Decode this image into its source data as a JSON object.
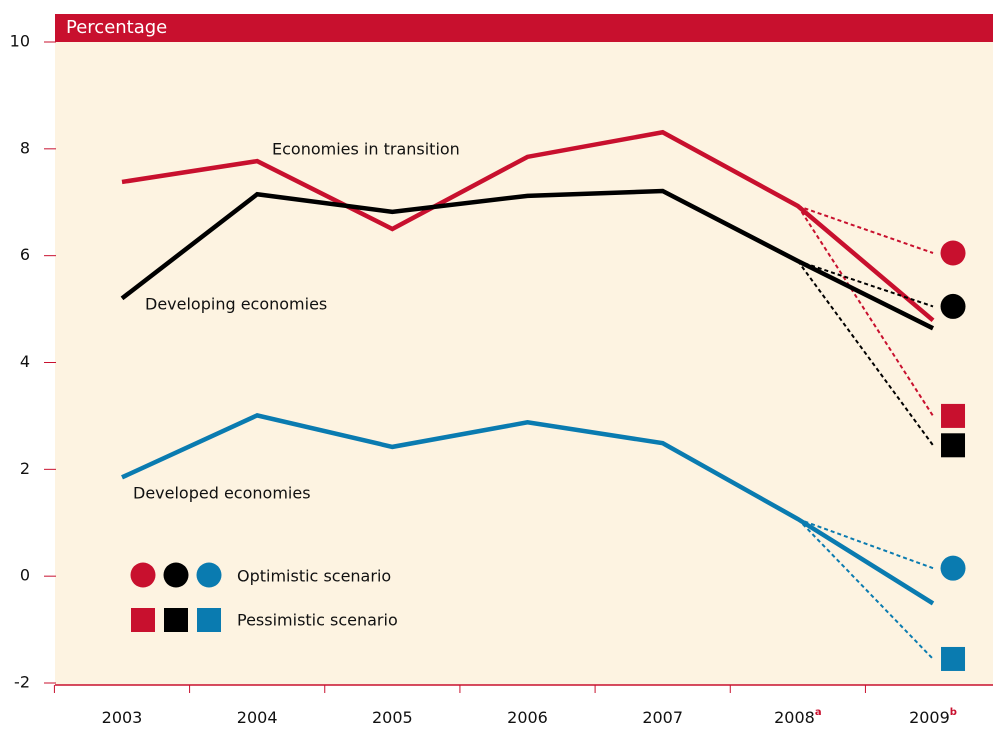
{
  "chart_data": {
    "type": "line",
    "axis_title": "Percentage",
    "categories": [
      "2003",
      "2004",
      "2005",
      "2006",
      "2007",
      "2008",
      "2009"
    ],
    "category_notes": [
      null,
      null,
      null,
      null,
      null,
      "a",
      "b"
    ],
    "ylim": [
      -2,
      10
    ],
    "yticks": [
      -2,
      0,
      2,
      4,
      6,
      8,
      10
    ],
    "series": [
      {
        "name": "Economies in transition",
        "color": "#c8102e",
        "values": [
          7.38,
          7.77,
          6.5,
          7.85,
          8.31,
          6.93,
          4.79
        ],
        "optimistic": 6.05,
        "pessimistic": 3.0
      },
      {
        "name": "Developing economies",
        "color": "#000000",
        "values": [
          5.2,
          7.15,
          6.82,
          7.12,
          7.21,
          5.9,
          4.64
        ],
        "optimistic": 5.05,
        "pessimistic": 2.45
      },
      {
        "name": "Developed economies",
        "color": "#0a7bb0",
        "values": [
          1.85,
          3.01,
          2.42,
          2.88,
          2.49,
          1.07,
          -0.51
        ],
        "optimistic": 0.15,
        "pessimistic": -1.55
      }
    ],
    "scenarios": [
      "Optimistic scenario",
      "Pessimistic scenario"
    ]
  }
}
